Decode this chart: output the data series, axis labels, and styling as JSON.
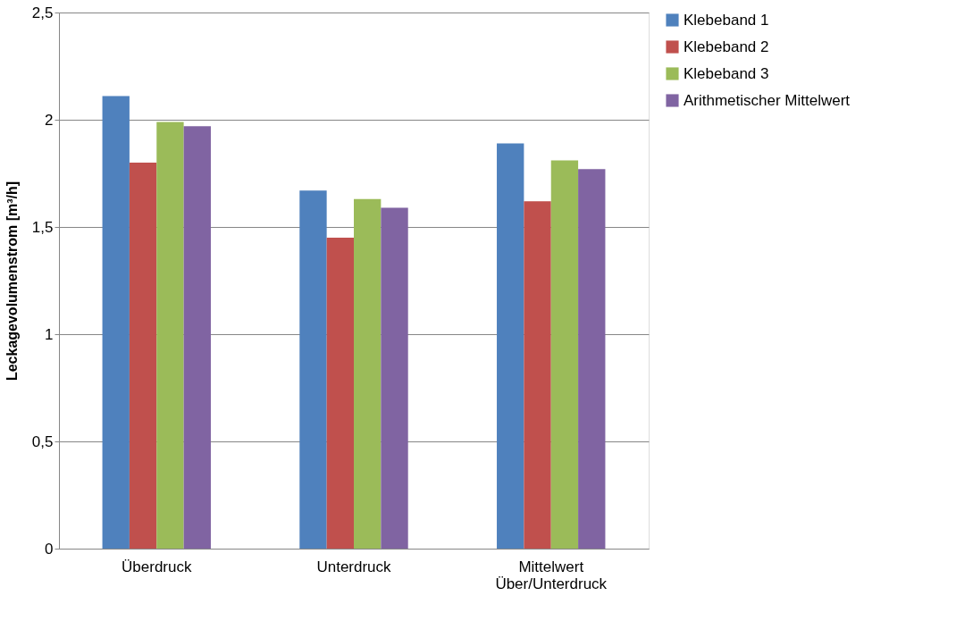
{
  "chart_data": {
    "type": "bar",
    "ylabel": "Leckagevolumenstrom [m³/h]",
    "categories": [
      "Überdruck",
      "Unterdruck",
      "Mittelwert\nÜber/Unterdruck"
    ],
    "series": [
      {
        "name": "Klebeband 1",
        "color": "#4f81bd",
        "values": [
          2.11,
          1.67,
          1.89
        ]
      },
      {
        "name": "Klebeband 2",
        "color": "#c0504d",
        "values": [
          1.8,
          1.45,
          1.62
        ]
      },
      {
        "name": "Klebeband 3",
        "color": "#9bbb59",
        "values": [
          1.99,
          1.63,
          1.81
        ]
      },
      {
        "name": "Arithmetischer Mittelwert",
        "color": "#8064a2",
        "values": [
          1.97,
          1.59,
          1.77
        ]
      }
    ],
    "ylim": [
      0,
      2.5
    ],
    "yticks": [
      0,
      {
        "value": 0.5,
        "label": "0,5"
      },
      1,
      {
        "value": 1.5,
        "label": "1,5"
      },
      2,
      {
        "value": 2.5,
        "label": "2,5"
      }
    ],
    "grid": "y",
    "legend": "right"
  }
}
